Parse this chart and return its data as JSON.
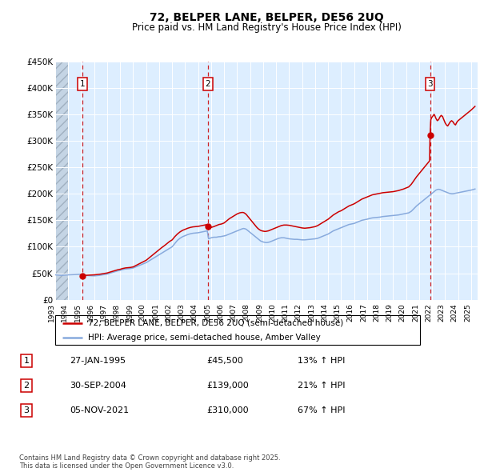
{
  "title": "72, BELPER LANE, BELPER, DE56 2UQ",
  "subtitle": "Price paid vs. HM Land Registry's House Price Index (HPI)",
  "sale_dates_num": [
    1995.07,
    2004.75,
    2021.84
  ],
  "sale_prices": [
    45500,
    139000,
    310000
  ],
  "sale_labels": [
    "1",
    "2",
    "3"
  ],
  "sale_date_strings": [
    "27-JAN-1995",
    "30-SEP-2004",
    "05-NOV-2021"
  ],
  "sale_price_strings": [
    "£45,500",
    "£139,000",
    "£310,000"
  ],
  "sale_pct_strings": [
    "13% ↑ HPI",
    "21% ↑ HPI",
    "67% ↑ HPI"
  ],
  "xmin": 1993.0,
  "xmax": 2025.5,
  "ymin": 0,
  "ymax": 450000,
  "yticks": [
    0,
    50000,
    100000,
    150000,
    200000,
    250000,
    300000,
    350000,
    400000,
    450000
  ],
  "ytick_labels": [
    "£0",
    "£50K",
    "£100K",
    "£150K",
    "£200K",
    "£250K",
    "£300K",
    "£350K",
    "£400K",
    "£450K"
  ],
  "xtick_years": [
    1993,
    1994,
    1995,
    1996,
    1997,
    1998,
    1999,
    2000,
    2001,
    2002,
    2003,
    2004,
    2005,
    2006,
    2007,
    2008,
    2009,
    2010,
    2011,
    2012,
    2013,
    2014,
    2015,
    2016,
    2017,
    2018,
    2019,
    2020,
    2021,
    2022,
    2023,
    2024,
    2025
  ],
  "price_line_color": "#cc0000",
  "hpi_line_color": "#88aadd",
  "chart_bg_color": "#ddeeff",
  "legend_label_price": "72, BELPER LANE, BELPER, DE56 2UQ (semi-detached house)",
  "legend_label_hpi": "HPI: Average price, semi-detached house, Amber Valley",
  "footer_text": "Contains HM Land Registry data © Crown copyright and database right 2025.\nThis data is licensed under the Open Government Licence v3.0.",
  "hpi_index_values": [
    [
      1993.0,
      47000
    ],
    [
      1993.1,
      46800
    ],
    [
      1993.2,
      46600
    ],
    [
      1993.3,
      46400
    ],
    [
      1993.4,
      46200
    ],
    [
      1993.5,
      46000
    ],
    [
      1993.6,
      46200
    ],
    [
      1993.7,
      46400
    ],
    [
      1993.8,
      46600
    ],
    [
      1993.9,
      46800
    ],
    [
      1994.0,
      47000
    ],
    [
      1994.1,
      47100
    ],
    [
      1994.2,
      47200
    ],
    [
      1994.3,
      47300
    ],
    [
      1994.4,
      47400
    ],
    [
      1994.5,
      47500
    ],
    [
      1994.6,
      47600
    ],
    [
      1994.7,
      47700
    ],
    [
      1994.8,
      47800
    ],
    [
      1994.9,
      47900
    ],
    [
      1995.0,
      46500
    ],
    [
      1995.1,
      46300
    ],
    [
      1995.2,
      46100
    ],
    [
      1995.3,
      45900
    ],
    [
      1995.4,
      45700
    ],
    [
      1995.5,
      45500
    ],
    [
      1995.6,
      45400
    ],
    [
      1995.7,
      45300
    ],
    [
      1995.8,
      45200
    ],
    [
      1995.9,
      45100
    ],
    [
      1996.0,
      45000
    ],
    [
      1996.2,
      45500
    ],
    [
      1996.4,
      46000
    ],
    [
      1996.6,
      46800
    ],
    [
      1996.8,
      47500
    ],
    [
      1997.0,
      48500
    ],
    [
      1997.2,
      50000
    ],
    [
      1997.4,
      51500
    ],
    [
      1997.6,
      53000
    ],
    [
      1997.8,
      54500
    ],
    [
      1998.0,
      55500
    ],
    [
      1998.2,
      57000
    ],
    [
      1998.4,
      58000
    ],
    [
      1998.6,
      58500
    ],
    [
      1998.8,
      59000
    ],
    [
      1999.0,
      60000
    ],
    [
      1999.2,
      62000
    ],
    [
      1999.4,
      64000
    ],
    [
      1999.6,
      66000
    ],
    [
      1999.8,
      68000
    ],
    [
      2000.0,
      70000
    ],
    [
      2000.2,
      73000
    ],
    [
      2000.4,
      76000
    ],
    [
      2000.6,
      79000
    ],
    [
      2000.8,
      82000
    ],
    [
      2001.0,
      85000
    ],
    [
      2001.2,
      88000
    ],
    [
      2001.4,
      91000
    ],
    [
      2001.6,
      94000
    ],
    [
      2001.8,
      97000
    ],
    [
      2002.0,
      100000
    ],
    [
      2002.2,
      106000
    ],
    [
      2002.4,
      112000
    ],
    [
      2002.6,
      116000
    ],
    [
      2002.8,
      119000
    ],
    [
      2003.0,
      121000
    ],
    [
      2003.2,
      123000
    ],
    [
      2003.4,
      124500
    ],
    [
      2003.6,
      125500
    ],
    [
      2003.8,
      126000
    ],
    [
      2004.0,
      126500
    ],
    [
      2004.1,
      127000
    ],
    [
      2004.2,
      127500
    ],
    [
      2004.3,
      128000
    ],
    [
      2004.4,
      128500
    ],
    [
      2004.5,
      129000
    ],
    [
      2004.6,
      129500
    ],
    [
      2004.7,
      130000
    ],
    [
      2004.8,
      115000
    ],
    [
      2004.9,
      116000
    ],
    [
      2005.0,
      117000
    ],
    [
      2005.1,
      117500
    ],
    [
      2005.2,
      118000
    ],
    [
      2005.3,
      118000
    ],
    [
      2005.4,
      118000
    ],
    [
      2005.5,
      118500
    ],
    [
      2005.6,
      119000
    ],
    [
      2005.7,
      119000
    ],
    [
      2005.8,
      119500
    ],
    [
      2005.9,
      120000
    ],
    [
      2006.0,
      120500
    ],
    [
      2006.1,
      121000
    ],
    [
      2006.2,
      122000
    ],
    [
      2006.3,
      123000
    ],
    [
      2006.4,
      124000
    ],
    [
      2006.5,
      125000
    ],
    [
      2006.6,
      126000
    ],
    [
      2006.7,
      127000
    ],
    [
      2006.8,
      128000
    ],
    [
      2006.9,
      129000
    ],
    [
      2007.0,
      130000
    ],
    [
      2007.1,
      131000
    ],
    [
      2007.2,
      132000
    ],
    [
      2007.3,
      133000
    ],
    [
      2007.4,
      134000
    ],
    [
      2007.5,
      134500
    ],
    [
      2007.6,
      134000
    ],
    [
      2007.7,
      133000
    ],
    [
      2007.8,
      131000
    ],
    [
      2007.9,
      129000
    ],
    [
      2008.0,
      127000
    ],
    [
      2008.1,
      125000
    ],
    [
      2008.2,
      123000
    ],
    [
      2008.3,
      121000
    ],
    [
      2008.4,
      119000
    ],
    [
      2008.5,
      117000
    ],
    [
      2008.6,
      115000
    ],
    [
      2008.7,
      113000
    ],
    [
      2008.8,
      111000
    ],
    [
      2008.9,
      110000
    ],
    [
      2009.0,
      109000
    ],
    [
      2009.1,
      108500
    ],
    [
      2009.2,
      108000
    ],
    [
      2009.3,
      108000
    ],
    [
      2009.4,
      108500
    ],
    [
      2009.5,
      109000
    ],
    [
      2009.6,
      110000
    ],
    [
      2009.7,
      111000
    ],
    [
      2009.8,
      112000
    ],
    [
      2009.9,
      113000
    ],
    [
      2010.0,
      114000
    ],
    [
      2010.1,
      115000
    ],
    [
      2010.2,
      116000
    ],
    [
      2010.3,
      116500
    ],
    [
      2010.4,
      117000
    ],
    [
      2010.5,
      117000
    ],
    [
      2010.6,
      117000
    ],
    [
      2010.7,
      116500
    ],
    [
      2010.8,
      116000
    ],
    [
      2010.9,
      115500
    ],
    [
      2011.0,
      115000
    ],
    [
      2011.2,
      114500
    ],
    [
      2011.4,
      114000
    ],
    [
      2011.6,
      114000
    ],
    [
      2011.8,
      113500
    ],
    [
      2012.0,
      113000
    ],
    [
      2012.2,
      113000
    ],
    [
      2012.4,
      113500
    ],
    [
      2012.6,
      114000
    ],
    [
      2012.8,
      114500
    ],
    [
      2013.0,
      115000
    ],
    [
      2013.2,
      116000
    ],
    [
      2013.4,
      118000
    ],
    [
      2013.6,
      120000
    ],
    [
      2013.8,
      122000
    ],
    [
      2014.0,
      124000
    ],
    [
      2014.2,
      127000
    ],
    [
      2014.4,
      130000
    ],
    [
      2014.6,
      132000
    ],
    [
      2014.8,
      134000
    ],
    [
      2015.0,
      136000
    ],
    [
      2015.2,
      138000
    ],
    [
      2015.4,
      140000
    ],
    [
      2015.6,
      142000
    ],
    [
      2015.8,
      143000
    ],
    [
      2016.0,
      144000
    ],
    [
      2016.2,
      146000
    ],
    [
      2016.4,
      148000
    ],
    [
      2016.6,
      150000
    ],
    [
      2016.8,
      151000
    ],
    [
      2017.0,
      152000
    ],
    [
      2017.2,
      153500
    ],
    [
      2017.4,
      154500
    ],
    [
      2017.6,
      155000
    ],
    [
      2017.8,
      155500
    ],
    [
      2018.0,
      156000
    ],
    [
      2018.2,
      157000
    ],
    [
      2018.4,
      157500
    ],
    [
      2018.6,
      158000
    ],
    [
      2018.8,
      158500
    ],
    [
      2019.0,
      159000
    ],
    [
      2019.2,
      159500
    ],
    [
      2019.4,
      160000
    ],
    [
      2019.6,
      161000
    ],
    [
      2019.8,
      162000
    ],
    [
      2020.0,
      163000
    ],
    [
      2020.2,
      164000
    ],
    [
      2020.4,
      167000
    ],
    [
      2020.6,
      172000
    ],
    [
      2020.8,
      177000
    ],
    [
      2021.0,
      181000
    ],
    [
      2021.1,
      183000
    ],
    [
      2021.2,
      185000
    ],
    [
      2021.3,
      187000
    ],
    [
      2021.4,
      189000
    ],
    [
      2021.5,
      191000
    ],
    [
      2021.6,
      193000
    ],
    [
      2021.7,
      195000
    ],
    [
      2021.8,
      197000
    ],
    [
      2021.9,
      199000
    ],
    [
      2022.0,
      201000
    ],
    [
      2022.1,
      203000
    ],
    [
      2022.2,
      205000
    ],
    [
      2022.3,
      207000
    ],
    [
      2022.4,
      208000
    ],
    [
      2022.5,
      208500
    ],
    [
      2022.6,
      208000
    ],
    [
      2022.7,
      207000
    ],
    [
      2022.8,
      206000
    ],
    [
      2022.9,
      205000
    ],
    [
      2023.0,
      204000
    ],
    [
      2023.1,
      203000
    ],
    [
      2023.2,
      202000
    ],
    [
      2023.3,
      201000
    ],
    [
      2023.4,
      200500
    ],
    [
      2023.5,
      200000
    ],
    [
      2023.6,
      200000
    ],
    [
      2023.7,
      200500
    ],
    [
      2023.8,
      201000
    ],
    [
      2023.9,
      201500
    ],
    [
      2024.0,
      202000
    ],
    [
      2024.2,
      203000
    ],
    [
      2024.4,
      204000
    ],
    [
      2024.6,
      205000
    ],
    [
      2024.8,
      206000
    ],
    [
      2025.0,
      207000
    ],
    [
      2025.3,
      209000
    ]
  ],
  "price_paid_values": [
    [
      1995.07,
      45500
    ],
    [
      1995.15,
      45800
    ],
    [
      1995.3,
      46000
    ],
    [
      1995.5,
      46200
    ],
    [
      1995.7,
      46500
    ],
    [
      1995.9,
      46800
    ],
    [
      1996.0,
      47000
    ],
    [
      1996.2,
      47500
    ],
    [
      1996.4,
      48000
    ],
    [
      1996.6,
      48800
    ],
    [
      1996.8,
      49500
    ],
    [
      1997.0,
      50500
    ],
    [
      1997.2,
      52000
    ],
    [
      1997.4,
      53500
    ],
    [
      1997.6,
      55000
    ],
    [
      1997.8,
      56500
    ],
    [
      1998.0,
      57500
    ],
    [
      1998.2,
      59000
    ],
    [
      1998.4,
      60000
    ],
    [
      1998.6,
      60500
    ],
    [
      1998.8,
      61000
    ],
    [
      1999.0,
      62000
    ],
    [
      1999.2,
      64500
    ],
    [
      1999.4,
      67000
    ],
    [
      1999.6,
      69500
    ],
    [
      1999.8,
      72000
    ],
    [
      2000.0,
      74500
    ],
    [
      2000.2,
      78500
    ],
    [
      2000.4,
      82500
    ],
    [
      2000.6,
      86500
    ],
    [
      2000.8,
      90500
    ],
    [
      2001.0,
      94500
    ],
    [
      2001.2,
      98500
    ],
    [
      2001.4,
      102000
    ],
    [
      2001.6,
      106000
    ],
    [
      2001.8,
      110000
    ],
    [
      2002.0,
      113000
    ],
    [
      2002.2,
      119000
    ],
    [
      2002.4,
      124000
    ],
    [
      2002.6,
      128000
    ],
    [
      2002.8,
      131000
    ],
    [
      2003.0,
      133000
    ],
    [
      2003.2,
      135000
    ],
    [
      2003.4,
      136500
    ],
    [
      2003.6,
      137500
    ],
    [
      2003.8,
      138000
    ],
    [
      2004.0,
      138500
    ],
    [
      2004.1,
      139000
    ],
    [
      2004.2,
      139500
    ],
    [
      2004.3,
      140000
    ],
    [
      2004.4,
      140500
    ],
    [
      2004.5,
      141000
    ],
    [
      2004.6,
      141500
    ],
    [
      2004.7,
      142000
    ],
    [
      2004.75,
      139000
    ],
    [
      2004.8,
      137000
    ],
    [
      2004.9,
      136000
    ],
    [
      2005.0,
      136500
    ],
    [
      2005.2,
      138000
    ],
    [
      2005.4,
      140000
    ],
    [
      2005.6,
      142000
    ],
    [
      2005.8,
      143000
    ],
    [
      2006.0,
      145000
    ],
    [
      2006.2,
      149000
    ],
    [
      2006.4,
      153000
    ],
    [
      2006.6,
      156000
    ],
    [
      2006.8,
      159000
    ],
    [
      2007.0,
      162000
    ],
    [
      2007.1,
      163000
    ],
    [
      2007.2,
      164000
    ],
    [
      2007.3,
      164500
    ],
    [
      2007.4,
      164800
    ],
    [
      2007.5,
      164500
    ],
    [
      2007.6,
      163000
    ],
    [
      2007.7,
      161000
    ],
    [
      2007.8,
      158000
    ],
    [
      2007.9,
      155000
    ],
    [
      2008.0,
      152000
    ],
    [
      2008.1,
      149000
    ],
    [
      2008.2,
      146000
    ],
    [
      2008.3,
      143000
    ],
    [
      2008.4,
      140000
    ],
    [
      2008.5,
      137000
    ],
    [
      2008.6,
      134500
    ],
    [
      2008.7,
      132500
    ],
    [
      2008.8,
      131000
    ],
    [
      2008.9,
      130000
    ],
    [
      2009.0,
      129500
    ],
    [
      2009.1,
      129000
    ],
    [
      2009.2,
      129000
    ],
    [
      2009.3,
      129500
    ],
    [
      2009.4,
      130000
    ],
    [
      2009.5,
      131000
    ],
    [
      2009.6,
      132000
    ],
    [
      2009.7,
      133000
    ],
    [
      2009.8,
      134000
    ],
    [
      2009.9,
      135000
    ],
    [
      2010.0,
      136000
    ],
    [
      2010.2,
      138000
    ],
    [
      2010.4,
      140000
    ],
    [
      2010.6,
      141000
    ],
    [
      2010.8,
      141000
    ],
    [
      2011.0,
      140500
    ],
    [
      2011.2,
      139500
    ],
    [
      2011.4,
      138500
    ],
    [
      2011.6,
      137500
    ],
    [
      2011.8,
      136500
    ],
    [
      2012.0,
      135500
    ],
    [
      2012.2,
      135000
    ],
    [
      2012.4,
      135500
    ],
    [
      2012.6,
      136000
    ],
    [
      2012.8,
      137000
    ],
    [
      2013.0,
      138000
    ],
    [
      2013.2,
      140000
    ],
    [
      2013.4,
      143000
    ],
    [
      2013.6,
      146000
    ],
    [
      2013.8,
      149000
    ],
    [
      2014.0,
      152000
    ],
    [
      2014.2,
      156000
    ],
    [
      2014.4,
      160000
    ],
    [
      2014.6,
      163000
    ],
    [
      2014.8,
      166000
    ],
    [
      2015.0,
      168000
    ],
    [
      2015.2,
      171000
    ],
    [
      2015.4,
      174000
    ],
    [
      2015.6,
      177000
    ],
    [
      2015.8,
      179000
    ],
    [
      2016.0,
      181000
    ],
    [
      2016.2,
      184000
    ],
    [
      2016.4,
      187000
    ],
    [
      2016.6,
      190000
    ],
    [
      2016.8,
      192000
    ],
    [
      2017.0,
      194000
    ],
    [
      2017.2,
      196000
    ],
    [
      2017.4,
      198000
    ],
    [
      2017.6,
      199000
    ],
    [
      2017.8,
      200000
    ],
    [
      2018.0,
      201000
    ],
    [
      2018.2,
      202000
    ],
    [
      2018.4,
      202500
    ],
    [
      2018.6,
      203000
    ],
    [
      2018.8,
      203500
    ],
    [
      2019.0,
      204000
    ],
    [
      2019.2,
      205000
    ],
    [
      2019.4,
      206000
    ],
    [
      2019.6,
      207500
    ],
    [
      2019.8,
      209000
    ],
    [
      2020.0,
      211000
    ],
    [
      2020.2,
      213000
    ],
    [
      2020.4,
      218000
    ],
    [
      2020.6,
      225000
    ],
    [
      2020.8,
      232000
    ],
    [
      2021.0,
      238000
    ],
    [
      2021.1,
      241000
    ],
    [
      2021.2,
      244000
    ],
    [
      2021.3,
      247000
    ],
    [
      2021.4,
      250000
    ],
    [
      2021.5,
      253000
    ],
    [
      2021.6,
      256000
    ],
    [
      2021.7,
      259000
    ],
    [
      2021.8,
      262000
    ],
    [
      2021.84,
      310000
    ],
    [
      2021.9,
      340000
    ],
    [
      2022.0,
      345000
    ],
    [
      2022.1,
      348000
    ],
    [
      2022.15,
      350000
    ],
    [
      2022.2,
      348000
    ],
    [
      2022.3,
      342000
    ],
    [
      2022.4,
      338000
    ],
    [
      2022.5,
      340000
    ],
    [
      2022.6,
      345000
    ],
    [
      2022.7,
      348000
    ],
    [
      2022.8,
      346000
    ],
    [
      2022.9,
      340000
    ],
    [
      2023.0,
      334000
    ],
    [
      2023.1,
      330000
    ],
    [
      2023.2,
      328000
    ],
    [
      2023.3,
      332000
    ],
    [
      2023.4,
      336000
    ],
    [
      2023.5,
      338000
    ],
    [
      2023.6,
      336000
    ],
    [
      2023.7,
      332000
    ],
    [
      2023.8,
      330000
    ],
    [
      2023.9,
      335000
    ],
    [
      2024.0,
      338000
    ],
    [
      2024.2,
      342000
    ],
    [
      2024.4,
      346000
    ],
    [
      2024.6,
      350000
    ],
    [
      2024.8,
      354000
    ],
    [
      2025.0,
      358000
    ],
    [
      2025.3,
      365000
    ]
  ]
}
